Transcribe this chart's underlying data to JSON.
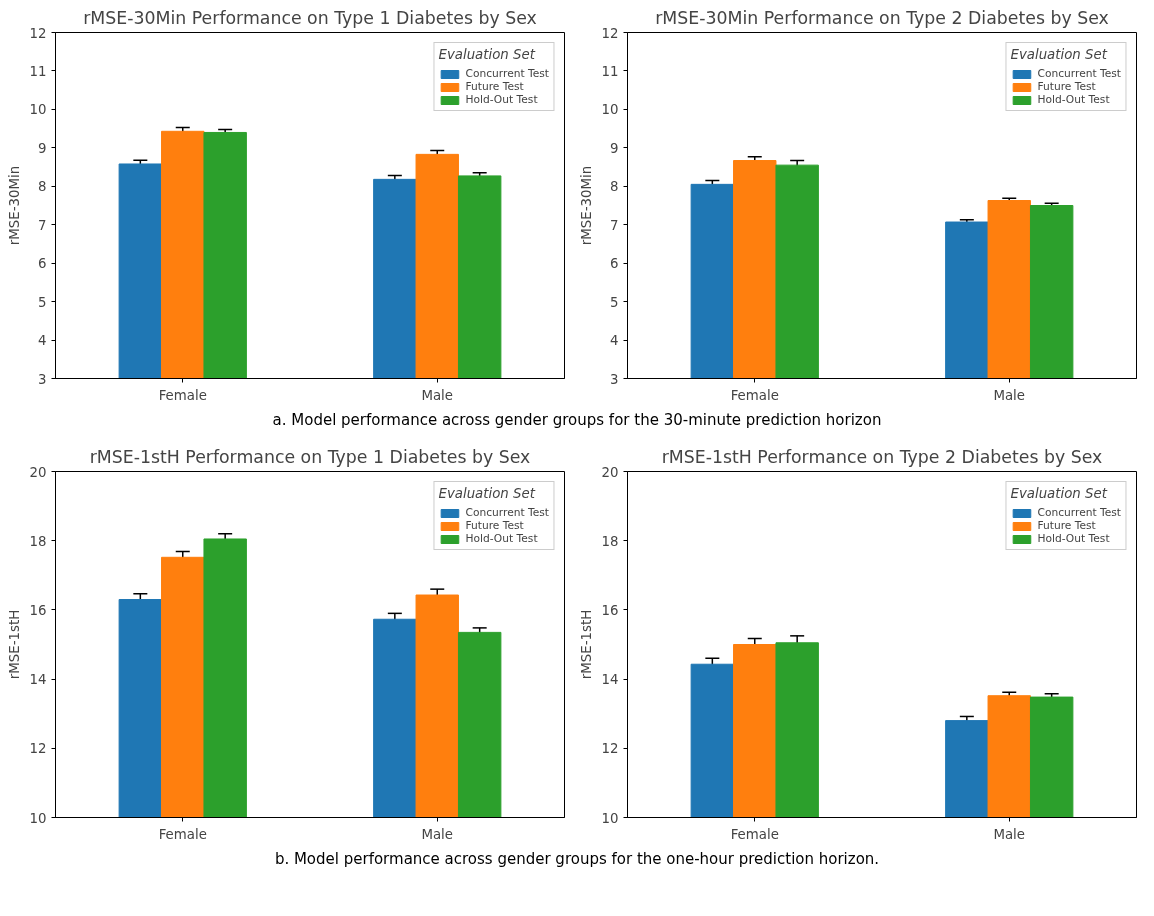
{
  "chart_data": [
    {
      "type": "bar",
      "title": "rMSE-30Min Performance on Type 1 Diabetes by Sex",
      "ylabel": "rMSE-30Min",
      "legend_title": "Evaluation Set",
      "categories": [
        "Female",
        "Male"
      ],
      "ylim": [
        3,
        12
      ],
      "yticks": [
        3,
        4,
        5,
        6,
        7,
        8,
        9,
        10,
        11,
        12
      ],
      "grid": false,
      "legend": "top right",
      "series": [
        {
          "name": "Concurrent Test",
          "color": "#1f77b4",
          "values": [
            8.58,
            8.18
          ],
          "errors": [
            0.1,
            0.1
          ]
        },
        {
          "name": "Future Test",
          "color": "#ff7f0e",
          "values": [
            9.43,
            8.83
          ],
          "errors": [
            0.1,
            0.1
          ]
        },
        {
          "name": "Hold-Out Test",
          "color": "#2ca02c",
          "values": [
            9.4,
            8.27
          ],
          "errors": [
            0.08,
            0.08
          ]
        }
      ],
      "annotations": [
        "a. Model performance across gender groups for the 30-minute prediction horizon"
      ]
    },
    {
      "type": "bar",
      "title": "rMSE-30Min Performance on Type 2 Diabetes by Sex",
      "ylabel": "rMSE-30Min",
      "legend_title": "Evaluation Set",
      "categories": [
        "Female",
        "Male"
      ],
      "ylim": [
        3,
        12
      ],
      "yticks": [
        3,
        4,
        5,
        6,
        7,
        8,
        9,
        10,
        11,
        12
      ],
      "grid": false,
      "legend": "top right",
      "series": [
        {
          "name": "Concurrent Test",
          "color": "#1f77b4",
          "values": [
            8.05,
            7.07
          ],
          "errors": [
            0.1,
            0.06
          ]
        },
        {
          "name": "Future Test",
          "color": "#ff7f0e",
          "values": [
            8.67,
            7.63
          ],
          "errors": [
            0.1,
            0.06
          ]
        },
        {
          "name": "Hold-Out Test",
          "color": "#2ca02c",
          "values": [
            8.55,
            7.5
          ],
          "errors": [
            0.12,
            0.06
          ]
        }
      ]
    },
    {
      "type": "bar",
      "title": "rMSE-1stH Performance on Type 1 Diabetes by Sex",
      "ylabel": "rMSE-1stH",
      "legend_title": "Evaluation Set",
      "categories": [
        "Female",
        "Male"
      ],
      "ylim": [
        10,
        20
      ],
      "yticks": [
        10,
        12,
        14,
        16,
        18,
        20
      ],
      "grid": false,
      "legend": "top right",
      "series": [
        {
          "name": "Concurrent Test",
          "color": "#1f77b4",
          "values": [
            16.3,
            15.73
          ],
          "errors": [
            0.17,
            0.17
          ]
        },
        {
          "name": "Future Test",
          "color": "#ff7f0e",
          "values": [
            17.52,
            16.43
          ],
          "errors": [
            0.17,
            0.17
          ]
        },
        {
          "name": "Hold-Out Test",
          "color": "#2ca02c",
          "values": [
            18.05,
            15.35
          ],
          "errors": [
            0.15,
            0.13
          ]
        }
      ],
      "annotations": [
        "b. Model performance across gender groups for the one-hour prediction horizon."
      ]
    },
    {
      "type": "bar",
      "title": "rMSE-1stH Performance on Type 2 Diabetes by Sex",
      "ylabel": "rMSE-1stH",
      "legend_title": "Evaluation Set",
      "categories": [
        "Female",
        "Male"
      ],
      "ylim": [
        10,
        20
      ],
      "yticks": [
        10,
        12,
        14,
        16,
        18,
        20
      ],
      "grid": false,
      "legend": "top right",
      "series": [
        {
          "name": "Concurrent Test",
          "color": "#1f77b4",
          "values": [
            14.43,
            12.8
          ],
          "errors": [
            0.17,
            0.12
          ]
        },
        {
          "name": "Future Test",
          "color": "#ff7f0e",
          "values": [
            15.0,
            13.52
          ],
          "errors": [
            0.17,
            0.1
          ]
        },
        {
          "name": "Hold-Out Test",
          "color": "#2ca02c",
          "values": [
            15.05,
            13.48
          ],
          "errors": [
            0.2,
            0.1
          ]
        }
      ]
    }
  ]
}
